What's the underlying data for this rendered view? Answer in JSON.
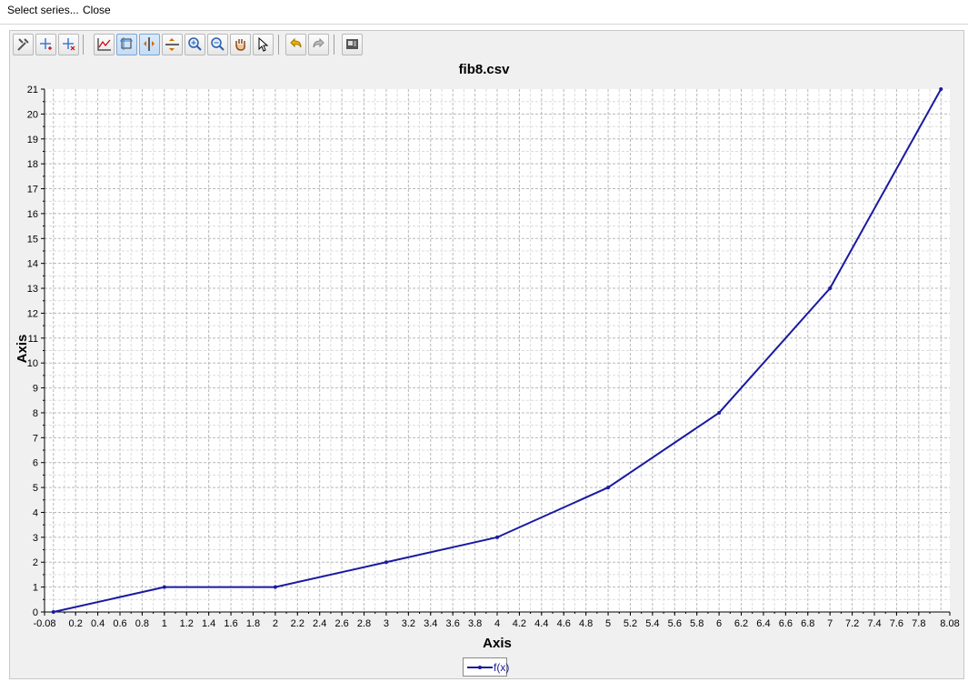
{
  "menu": {
    "select_series": "Select series...",
    "close": "Close"
  },
  "toolbar": {
    "buttons": [
      "settings-icon",
      "add-point-icon",
      "remove-point-icon",
      "axis-icon",
      "zoom-box-icon",
      "split-vertical-icon",
      "split-horizontal-icon",
      "zoom-in-icon",
      "zoom-out-icon",
      "pan-hand-icon",
      "pointer-icon",
      "undo-icon",
      "redo-icon",
      "export-icon"
    ],
    "active": [
      "zoom-box-icon",
      "split-vertical-icon"
    ]
  },
  "chart_data": {
    "type": "line",
    "title": "fib8.csv",
    "xlabel": "Axis",
    "ylabel": "Axis",
    "xlim": [
      -0.08,
      8.08
    ],
    "ylim": [
      0,
      21
    ],
    "x_ticks": [
      -0.08,
      0.2,
      0.4,
      0.6,
      0.8,
      1,
      1.2,
      1.4,
      1.6,
      1.8,
      2,
      2.2,
      2.4,
      2.6,
      2.8,
      3,
      3.2,
      3.4,
      3.6,
      3.8,
      4,
      4.2,
      4.4,
      4.6,
      4.8,
      5,
      5.2,
      5.4,
      5.6,
      5.8,
      6,
      6.2,
      6.4,
      6.6,
      6.8,
      7,
      7.2,
      7.4,
      7.6,
      7.8,
      8.08
    ],
    "y_ticks": [
      0,
      1,
      2,
      3,
      4,
      5,
      6,
      7,
      8,
      9,
      10,
      11,
      12,
      13,
      14,
      15,
      16,
      17,
      18,
      19,
      20,
      21
    ],
    "grid": true,
    "legend": "bottom-center",
    "series": [
      {
        "name": "f(x)",
        "color": "#1a1aa0",
        "x": [
          0,
          1,
          2,
          3,
          4,
          5,
          6,
          7,
          8
        ],
        "y": [
          0,
          1,
          1,
          2,
          3,
          5,
          8,
          13,
          21
        ]
      }
    ]
  }
}
